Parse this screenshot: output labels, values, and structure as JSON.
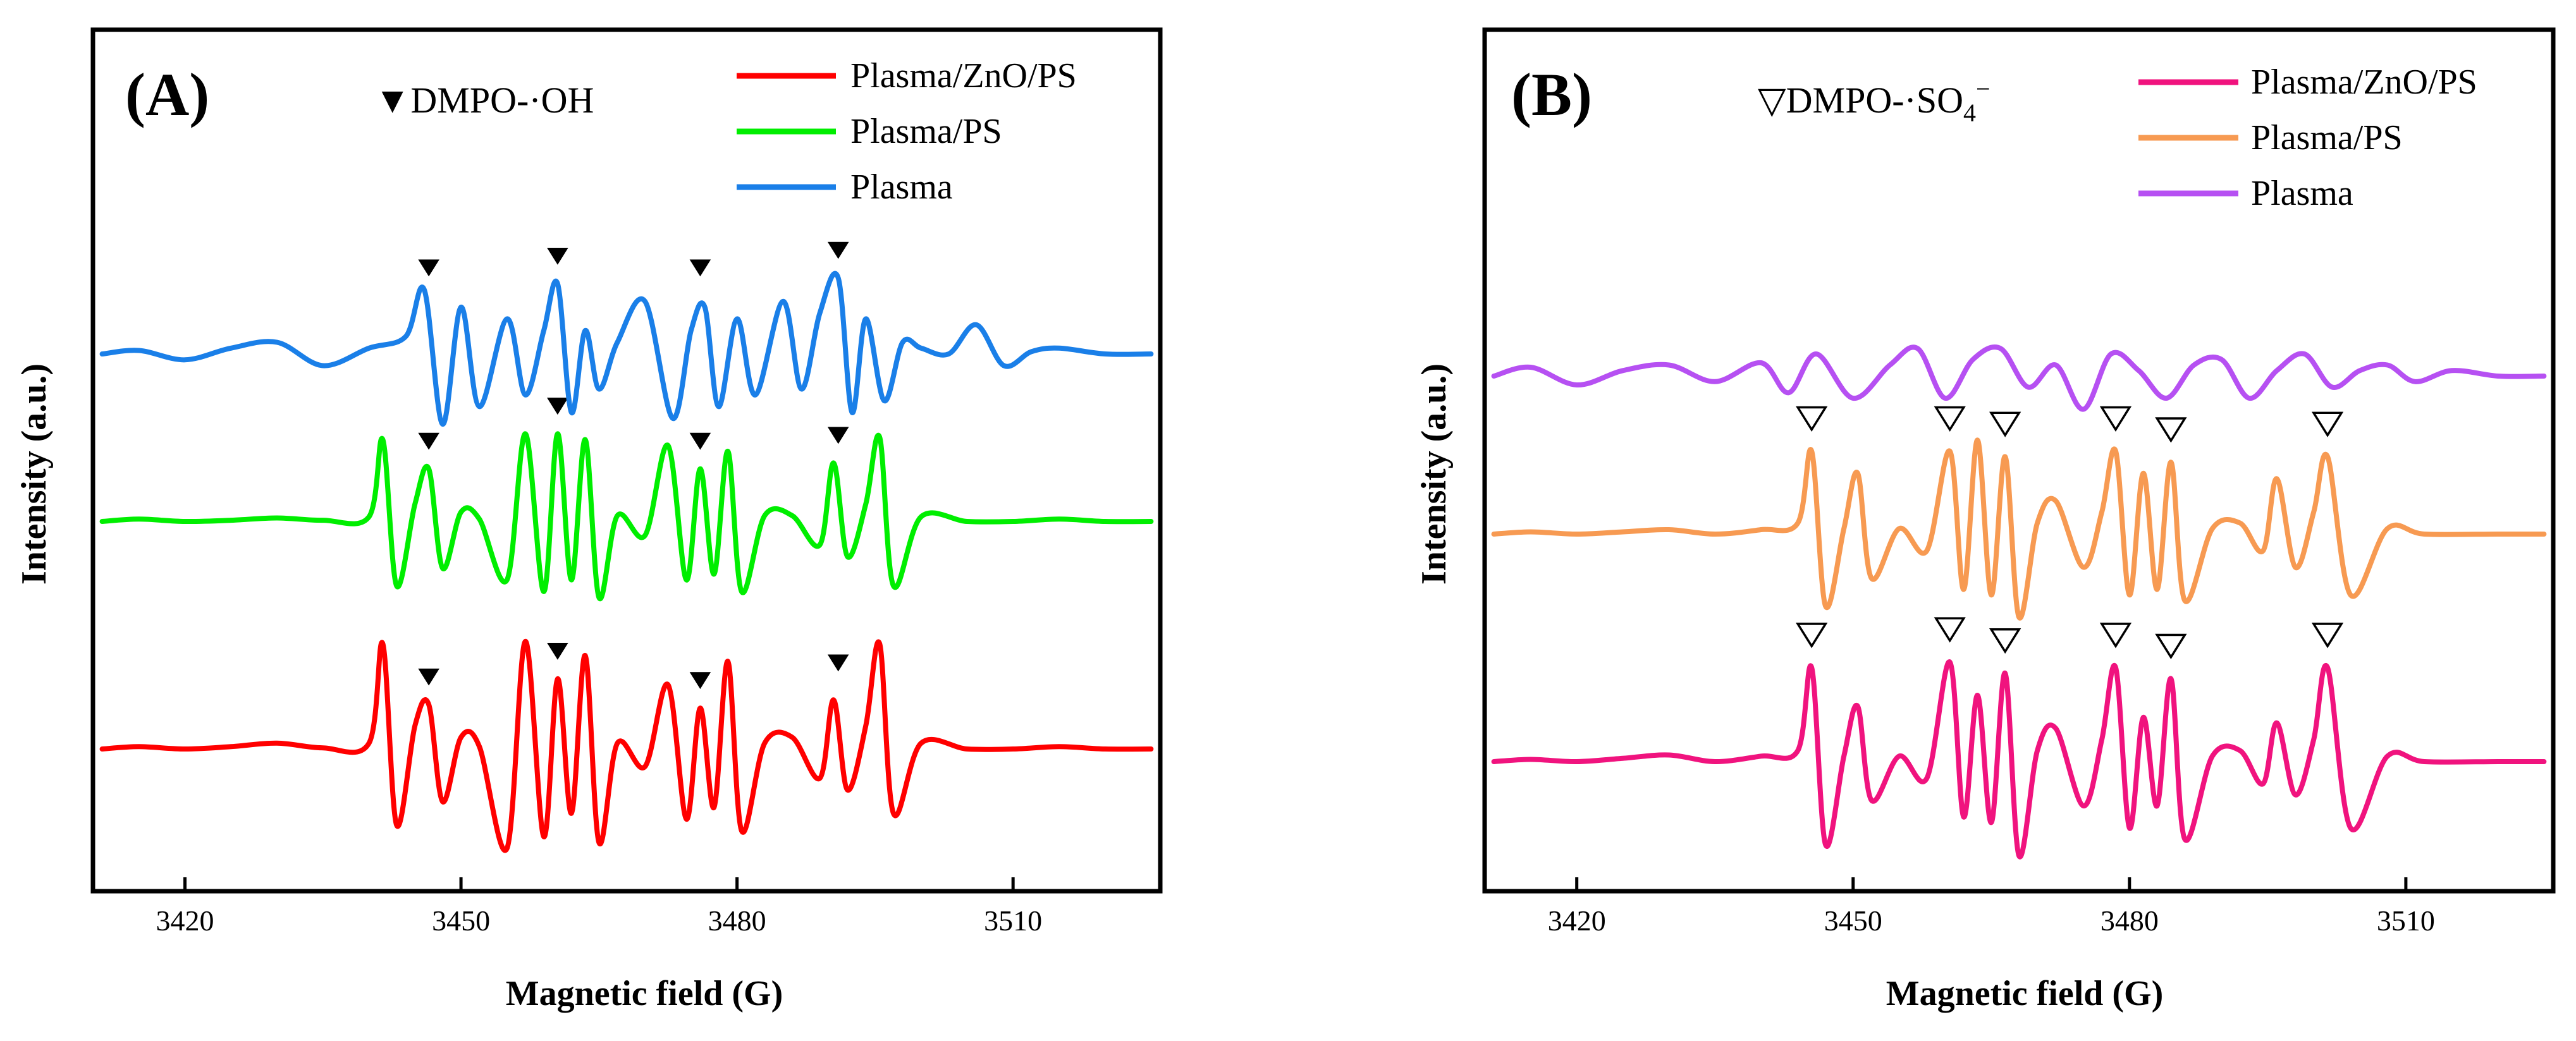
{
  "chart_data": [
    {
      "type": "line",
      "panel_label": "(A)",
      "title": "",
      "xlabel": "Magnetic field (G)",
      "ylabel": "Intensity (a.u.)",
      "xlim": [
        3410,
        3526
      ],
      "ylim": [
        -1,
        1
      ],
      "grid": false,
      "legend_position": "top-right",
      "x_ticks": [
        3420,
        3450,
        3480,
        3510
      ],
      "x_tick_labels": [
        "3420",
        "3450",
        "3480",
        "3510"
      ],
      "annotation": {
        "marker": "▼",
        "label": "DMPO-·OH"
      },
      "series": [
        {
          "name": "Plasma/ZnO/PS",
          "color": "#ff0000",
          "x": [
            3411,
            3415,
            3420,
            3425,
            3430,
            3435,
            3440,
            3441.5,
            3443,
            3445,
            3446.5,
            3448,
            3450,
            3452,
            3455,
            3457,
            3459,
            3460.5,
            3462,
            3463.5,
            3465,
            3467,
            3470,
            3472.5,
            3474.5,
            3476,
            3477.5,
            3479,
            3480.5,
            3483,
            3486,
            3489,
            3490.5,
            3492,
            3494,
            3495.5,
            3497,
            3500,
            3505,
            3510,
            3515,
            3520,
            3525
          ],
          "values": [
            0.0,
            0.02,
            0.0,
            0.02,
            0.05,
            0.01,
            0.05,
            0.9,
            -0.65,
            0.2,
            0.38,
            -0.45,
            0.1,
            0.02,
            -0.85,
            0.92,
            -0.75,
            0.6,
            -0.55,
            0.8,
            -0.8,
            0.05,
            -0.15,
            0.55,
            -0.6,
            0.35,
            -0.5,
            0.75,
            -0.7,
            0.05,
            0.1,
            -0.25,
            0.42,
            -0.35,
            0.2,
            0.9,
            -0.55,
            0.05,
            0.0,
            0.0,
            0.02,
            0.0,
            0.0
          ]
        },
        {
          "name": "Plasma/PS",
          "color": "#00ee00",
          "x": [
            3411,
            3415,
            3420,
            3425,
            3430,
            3435,
            3440,
            3441.5,
            3443,
            3445,
            3446.5,
            3448,
            3450,
            3452,
            3455,
            3457,
            3459,
            3460.5,
            3462,
            3463.5,
            3465,
            3467,
            3470,
            3472.5,
            3474.5,
            3476,
            3477.5,
            3479,
            3480.5,
            3483,
            3486,
            3489,
            3490.5,
            3492,
            3494,
            3495.5,
            3497,
            3500,
            3505,
            3510,
            3515,
            3520,
            3525
          ],
          "values": [
            0.0,
            0.02,
            0.0,
            0.01,
            0.03,
            0.01,
            0.04,
            0.7,
            -0.55,
            0.15,
            0.45,
            -0.4,
            0.08,
            0.02,
            -0.5,
            0.75,
            -0.6,
            0.75,
            -0.5,
            0.7,
            -0.65,
            0.05,
            -0.12,
            0.65,
            -0.5,
            0.45,
            -0.45,
            0.6,
            -0.6,
            0.05,
            0.05,
            -0.2,
            0.5,
            -0.3,
            0.15,
            0.72,
            -0.55,
            0.04,
            0.0,
            0.0,
            0.02,
            0.0,
            0.0
          ]
        },
        {
          "name": "Plasma",
          "color": "#1a7fe8",
          "x": [
            3411,
            3415,
            3420,
            3425,
            3430,
            3435,
            3440,
            3444,
            3446,
            3448,
            3450,
            3452,
            3455,
            3457,
            3459,
            3460.5,
            3462,
            3463.5,
            3465,
            3467,
            3470,
            3473,
            3475,
            3476.5,
            3478,
            3480,
            3482,
            3485,
            3487,
            3489,
            3491,
            3492.5,
            3494,
            3496,
            3498,
            3500,
            3503,
            3506,
            3509,
            3512,
            3515,
            3520,
            3525
          ],
          "values": [
            0.0,
            0.03,
            -0.05,
            0.05,
            0.1,
            -0.1,
            0.05,
            0.15,
            0.55,
            -0.6,
            0.4,
            -0.45,
            0.3,
            -0.35,
            0.2,
            0.6,
            -0.5,
            0.2,
            -0.3,
            0.1,
            0.45,
            -0.55,
            0.2,
            0.4,
            -0.45,
            0.3,
            -0.35,
            0.45,
            -0.3,
            0.35,
            0.65,
            -0.5,
            0.3,
            -0.4,
            0.1,
            0.05,
            0.0,
            0.25,
            -0.1,
            0.02,
            0.05,
            0.0,
            0.0
          ]
        }
      ],
      "markers": [
        {
          "series": "Plasma/ZnO/PS",
          "x": [
            3446.5,
            3460.5,
            3476,
            3491
          ]
        },
        {
          "series": "Plasma/PS",
          "x": [
            3446.5,
            3460.5,
            3476,
            3491
          ]
        },
        {
          "series": "Plasma",
          "x": [
            3446.5,
            3460.5,
            3476,
            3491
          ]
        }
      ]
    },
    {
      "type": "line",
      "panel_label": "(B)",
      "title": "",
      "xlabel": "Magnetic field (G)",
      "ylabel": "Intensity (a.u.)",
      "xlim": [
        3410,
        3526
      ],
      "ylim": [
        -1,
        1
      ],
      "grid": false,
      "legend_position": "top-right",
      "x_ticks": [
        3420,
        3450,
        3480,
        3510
      ],
      "x_tick_labels": [
        "3420",
        "3450",
        "3480",
        "3510"
      ],
      "annotation": {
        "marker": "▽",
        "label": "DMPO-·SO",
        "subscript": "4",
        "superscript": "−"
      },
      "series": [
        {
          "name": "Plasma/ZnO/PS",
          "color": "#f0137e",
          "x": [
            3411,
            3415,
            3420,
            3425,
            3430,
            3435,
            3440,
            3444,
            3445.5,
            3447,
            3449,
            3450.5,
            3452,
            3455,
            3458,
            3460.5,
            3462,
            3463.5,
            3465,
            3466.5,
            3468,
            3470,
            3472,
            3475,
            3477,
            3478.5,
            3480,
            3481.5,
            3483,
            3484.5,
            3486,
            3489,
            3492,
            3494.5,
            3496,
            3498,
            3500,
            3501.5,
            3504,
            3508,
            3512,
            3520,
            3525
          ],
          "values": [
            0.0,
            0.02,
            0.0,
            0.03,
            0.06,
            0.0,
            0.05,
            0.1,
            0.85,
            -0.75,
            0.05,
            0.5,
            -0.35,
            0.05,
            -0.15,
            0.9,
            -0.5,
            0.6,
            -0.55,
            0.8,
            -0.85,
            0.1,
            0.3,
            -0.4,
            0.2,
            0.85,
            -0.6,
            0.4,
            -0.4,
            0.75,
            -0.7,
            0.05,
            0.1,
            -0.2,
            0.35,
            -0.3,
            0.2,
            0.85,
            -0.6,
            0.05,
            0.0,
            0.0,
            0.0
          ]
        },
        {
          "name": "Plasma/PS",
          "color": "#f79a52",
          "x": [
            3411,
            3415,
            3420,
            3425,
            3430,
            3435,
            3440,
            3444,
            3445.5,
            3447,
            3449,
            3450.5,
            3452,
            3455,
            3458,
            3460.5,
            3462,
            3463.5,
            3465,
            3466.5,
            3468,
            3470,
            3472,
            3475,
            3477,
            3478.5,
            3480,
            3481.5,
            3483,
            3484.5,
            3486,
            3489,
            3492,
            3494.5,
            3496,
            3498,
            3500,
            3501.5,
            3504,
            3508,
            3512,
            3520,
            3525
          ],
          "values": [
            0.0,
            0.02,
            0.0,
            0.02,
            0.04,
            0.0,
            0.04,
            0.1,
            0.75,
            -0.65,
            0.05,
            0.55,
            -0.4,
            0.05,
            -0.15,
            0.75,
            -0.5,
            0.85,
            -0.55,
            0.7,
            -0.75,
            0.1,
            0.3,
            -0.3,
            0.2,
            0.75,
            -0.55,
            0.55,
            -0.5,
            0.65,
            -0.6,
            0.05,
            0.1,
            -0.15,
            0.5,
            -0.3,
            0.2,
            0.7,
            -0.55,
            0.05,
            0.0,
            0.0,
            0.0
          ]
        },
        {
          "name": "Plasma",
          "color": "#b650f2",
          "x": [
            3411,
            3415,
            3420,
            3425,
            3430,
            3435,
            3440,
            3443,
            3446,
            3450,
            3454,
            3457,
            3460,
            3463,
            3466,
            3469,
            3472,
            3475,
            3478,
            3481,
            3484,
            3487,
            3490,
            3493,
            3496,
            3499,
            3502,
            3505,
            3508,
            3511,
            3515,
            3520,
            3525
          ],
          "values": [
            0.0,
            0.08,
            -0.08,
            0.05,
            0.1,
            -0.05,
            0.12,
            -0.15,
            0.2,
            -0.2,
            0.1,
            0.25,
            -0.2,
            0.15,
            0.25,
            -0.1,
            0.1,
            -0.3,
            0.2,
            0.05,
            -0.2,
            0.1,
            0.15,
            -0.2,
            0.05,
            0.2,
            -0.1,
            0.05,
            0.1,
            -0.05,
            0.05,
            0.0,
            0.0
          ]
        }
      ],
      "markers": [
        {
          "series": "Plasma/ZnO/PS",
          "x": [
            3445.5,
            3460.5,
            3466.5,
            3478.5,
            3484.5,
            3501.5
          ]
        },
        {
          "series": "Plasma/PS",
          "x": [
            3445.5,
            3460.5,
            3466.5,
            3478.5,
            3484.5,
            3501.5
          ]
        }
      ]
    }
  ]
}
